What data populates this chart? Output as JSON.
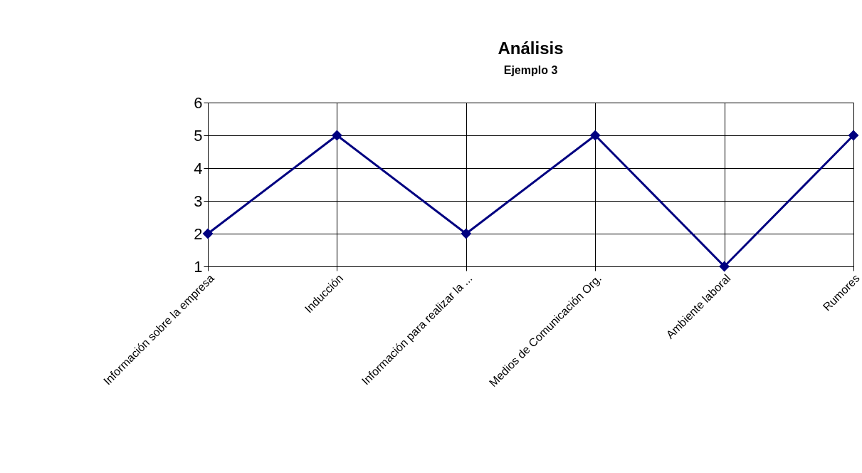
{
  "chart_data": {
    "type": "line",
    "title": "Análisis",
    "subtitle": "Ejemplo 3",
    "categories": [
      "Información sobre la empresa",
      "Inducción",
      "Información para realizar la ...",
      "Medios de Comunicación Org.",
      "Ambiente laboral",
      "Rumores"
    ],
    "series": [
      {
        "color": "#000080",
        "values": [
          2,
          5,
          2,
          5,
          1,
          5
        ]
      }
    ],
    "ylim": [
      1,
      6
    ],
    "yticks": [
      1,
      2,
      3,
      4,
      5,
      6
    ],
    "grid": true,
    "marker": "diamond",
    "line_style": "solid"
  }
}
